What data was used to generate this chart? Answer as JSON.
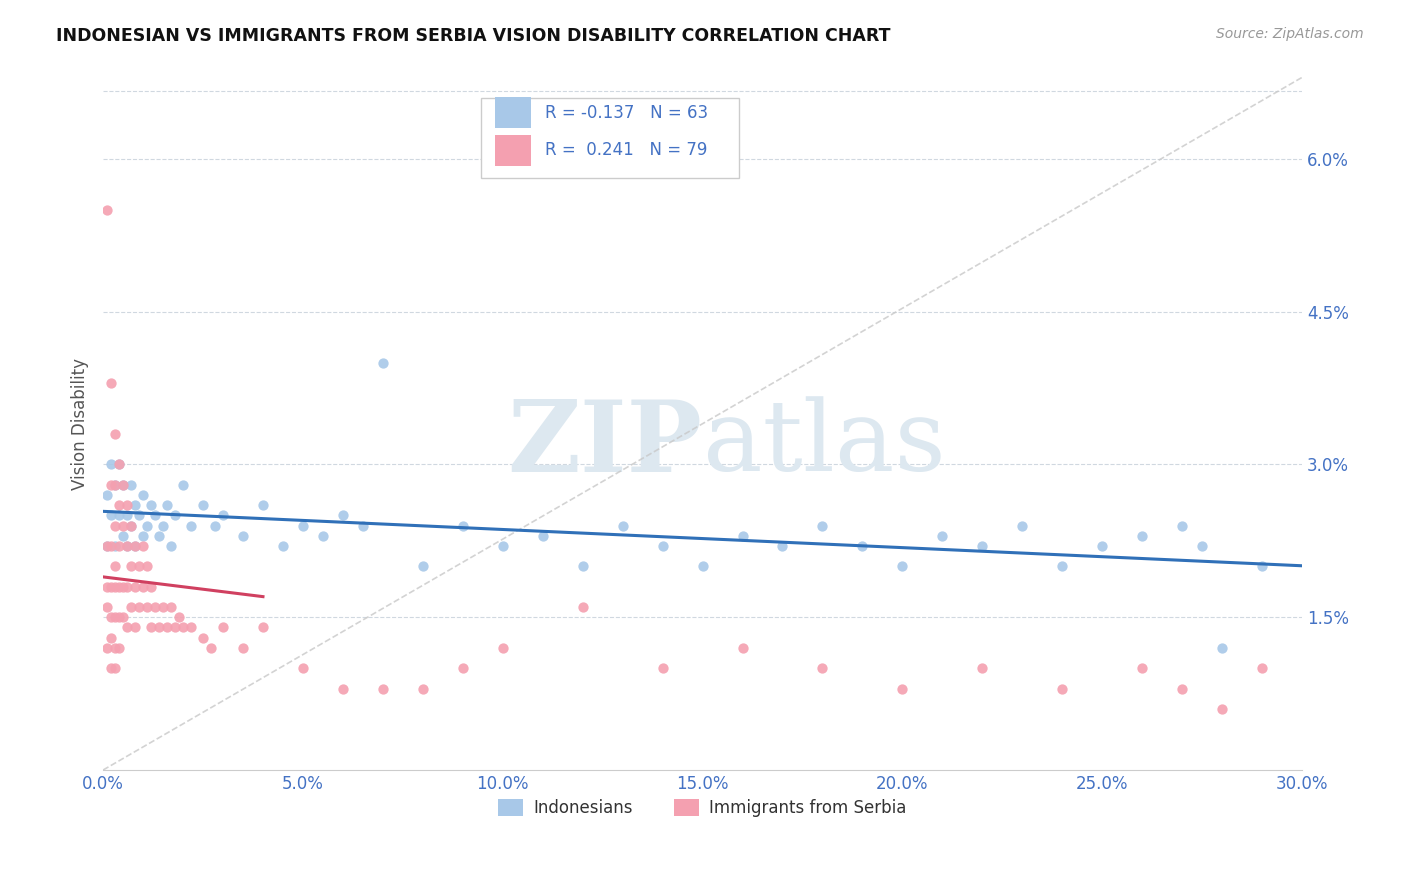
{
  "title": "INDONESIAN VS IMMIGRANTS FROM SERBIA VISION DISABILITY CORRELATION CHART",
  "source": "Source: ZipAtlas.com",
  "ylabel": "Vision Disability",
  "x_min": 0.0,
  "x_max": 0.3,
  "y_min": 0.0,
  "y_max": 0.068,
  "x_ticks": [
    0.0,
    0.05,
    0.1,
    0.15,
    0.2,
    0.25,
    0.3
  ],
  "x_tick_labels": [
    "0.0%",
    "5.0%",
    "10.0%",
    "15.0%",
    "20.0%",
    "25.0%",
    "30.0%"
  ],
  "y_ticks": [
    0.015,
    0.03,
    0.045,
    0.06
  ],
  "y_tick_labels": [
    "1.5%",
    "3.0%",
    "4.5%",
    "6.0%"
  ],
  "legend_r_blue": "-0.137",
  "legend_n_blue": "63",
  "legend_r_pink": "0.241",
  "legend_n_pink": "79",
  "blue_color": "#a8c8e8",
  "pink_color": "#f4a0b0",
  "blue_line_color": "#3070b8",
  "pink_line_color": "#d04060",
  "ref_line_color": "#c8c8c8",
  "background_color": "#ffffff",
  "watermark_zip": "ZIP",
  "watermark_atlas": "atlas",
  "indonesians_x": [
    0.001,
    0.001,
    0.002,
    0.002,
    0.003,
    0.003,
    0.004,
    0.004,
    0.005,
    0.005,
    0.006,
    0.006,
    0.007,
    0.007,
    0.008,
    0.008,
    0.009,
    0.01,
    0.01,
    0.011,
    0.012,
    0.013,
    0.014,
    0.015,
    0.016,
    0.017,
    0.018,
    0.02,
    0.022,
    0.025,
    0.028,
    0.03,
    0.035,
    0.04,
    0.045,
    0.05,
    0.055,
    0.06,
    0.065,
    0.07,
    0.08,
    0.09,
    0.1,
    0.11,
    0.12,
    0.13,
    0.14,
    0.15,
    0.16,
    0.17,
    0.18,
    0.19,
    0.2,
    0.21,
    0.22,
    0.23,
    0.24,
    0.25,
    0.26,
    0.27,
    0.275,
    0.28,
    0.29
  ],
  "indonesians_y": [
    0.027,
    0.022,
    0.03,
    0.025,
    0.028,
    0.022,
    0.03,
    0.025,
    0.023,
    0.028,
    0.025,
    0.022,
    0.028,
    0.024,
    0.026,
    0.022,
    0.025,
    0.023,
    0.027,
    0.024,
    0.026,
    0.025,
    0.023,
    0.024,
    0.026,
    0.022,
    0.025,
    0.028,
    0.024,
    0.026,
    0.024,
    0.025,
    0.023,
    0.026,
    0.022,
    0.024,
    0.023,
    0.025,
    0.024,
    0.04,
    0.02,
    0.024,
    0.022,
    0.023,
    0.02,
    0.024,
    0.022,
    0.02,
    0.023,
    0.022,
    0.024,
    0.022,
    0.02,
    0.023,
    0.022,
    0.024,
    0.02,
    0.022,
    0.023,
    0.024,
    0.022,
    0.012,
    0.02
  ],
  "serbia_x": [
    0.001,
    0.001,
    0.001,
    0.001,
    0.001,
    0.002,
    0.002,
    0.002,
    0.002,
    0.002,
    0.002,
    0.002,
    0.003,
    0.003,
    0.003,
    0.003,
    0.003,
    0.003,
    0.003,
    0.003,
    0.004,
    0.004,
    0.004,
    0.004,
    0.004,
    0.004,
    0.005,
    0.005,
    0.005,
    0.005,
    0.006,
    0.006,
    0.006,
    0.006,
    0.007,
    0.007,
    0.007,
    0.008,
    0.008,
    0.008,
    0.009,
    0.009,
    0.01,
    0.01,
    0.011,
    0.011,
    0.012,
    0.012,
    0.013,
    0.014,
    0.015,
    0.016,
    0.017,
    0.018,
    0.019,
    0.02,
    0.022,
    0.025,
    0.027,
    0.03,
    0.035,
    0.04,
    0.05,
    0.06,
    0.07,
    0.08,
    0.09,
    0.1,
    0.12,
    0.14,
    0.16,
    0.18,
    0.2,
    0.22,
    0.24,
    0.26,
    0.27,
    0.28,
    0.29
  ],
  "serbia_y": [
    0.055,
    0.022,
    0.018,
    0.016,
    0.012,
    0.038,
    0.028,
    0.022,
    0.018,
    0.015,
    0.013,
    0.01,
    0.033,
    0.028,
    0.024,
    0.02,
    0.018,
    0.015,
    0.012,
    0.01,
    0.03,
    0.026,
    0.022,
    0.018,
    0.015,
    0.012,
    0.028,
    0.024,
    0.018,
    0.015,
    0.026,
    0.022,
    0.018,
    0.014,
    0.024,
    0.02,
    0.016,
    0.022,
    0.018,
    0.014,
    0.02,
    0.016,
    0.022,
    0.018,
    0.02,
    0.016,
    0.018,
    0.014,
    0.016,
    0.014,
    0.016,
    0.014,
    0.016,
    0.014,
    0.015,
    0.014,
    0.014,
    0.013,
    0.012,
    0.014,
    0.012,
    0.014,
    0.01,
    0.008,
    0.008,
    0.008,
    0.01,
    0.012,
    0.016,
    0.01,
    0.012,
    0.01,
    0.008,
    0.01,
    0.008,
    0.01,
    0.008,
    0.006,
    0.01
  ],
  "pink_trend_x_start": 0.0,
  "pink_trend_x_end": 0.04,
  "blue_trend_x_start": 0.0,
  "blue_trend_x_end": 0.3
}
